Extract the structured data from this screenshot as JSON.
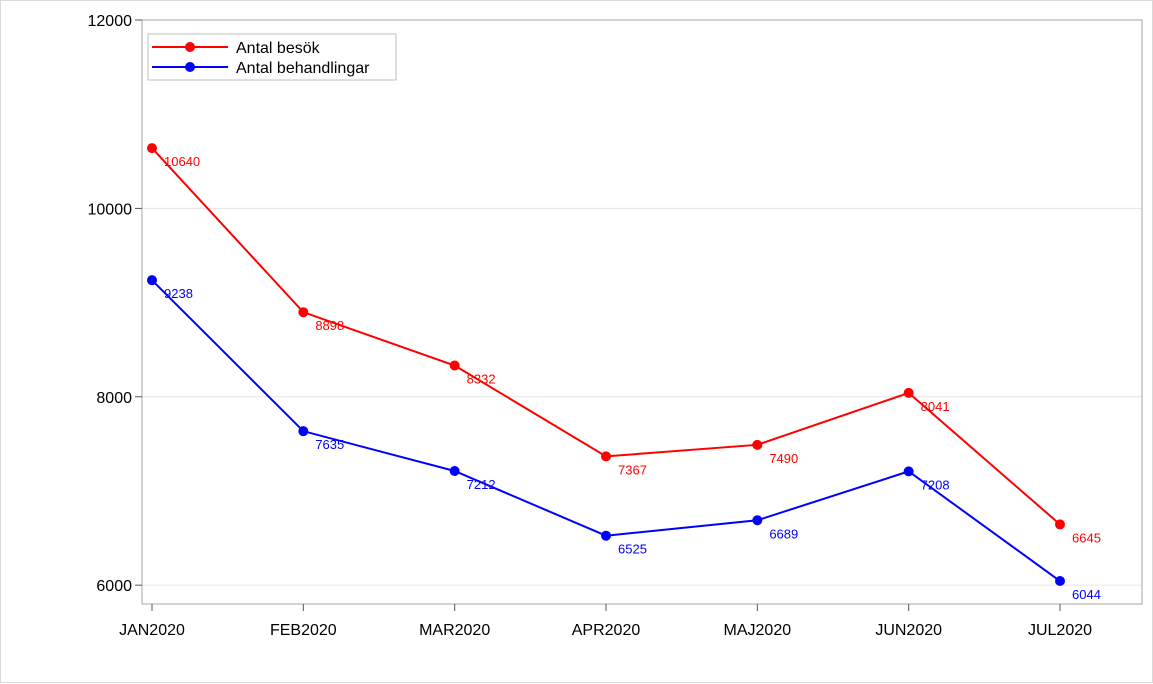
{
  "chart_data": {
    "type": "line",
    "categories": [
      "JAN2020",
      "FEB2020",
      "MAR2020",
      "APR2020",
      "MAJ2020",
      "JUN2020",
      "JUL2020"
    ],
    "series": [
      {
        "name": "Antal besök",
        "color": "#ff0000",
        "values": [
          10640,
          8898,
          8332,
          7367,
          7490,
          8041,
          6645
        ]
      },
      {
        "name": "Antal behandlingar",
        "color": "#0000ff",
        "values": [
          9238,
          7635,
          7212,
          6525,
          6689,
          7208,
          6044
        ]
      }
    ],
    "y_ticks": [
      6000,
      8000,
      10000,
      12000
    ],
    "ylim": [
      5800,
      12000
    ],
    "grid": true,
    "legend_position": "top-left",
    "data_labels": true
  }
}
